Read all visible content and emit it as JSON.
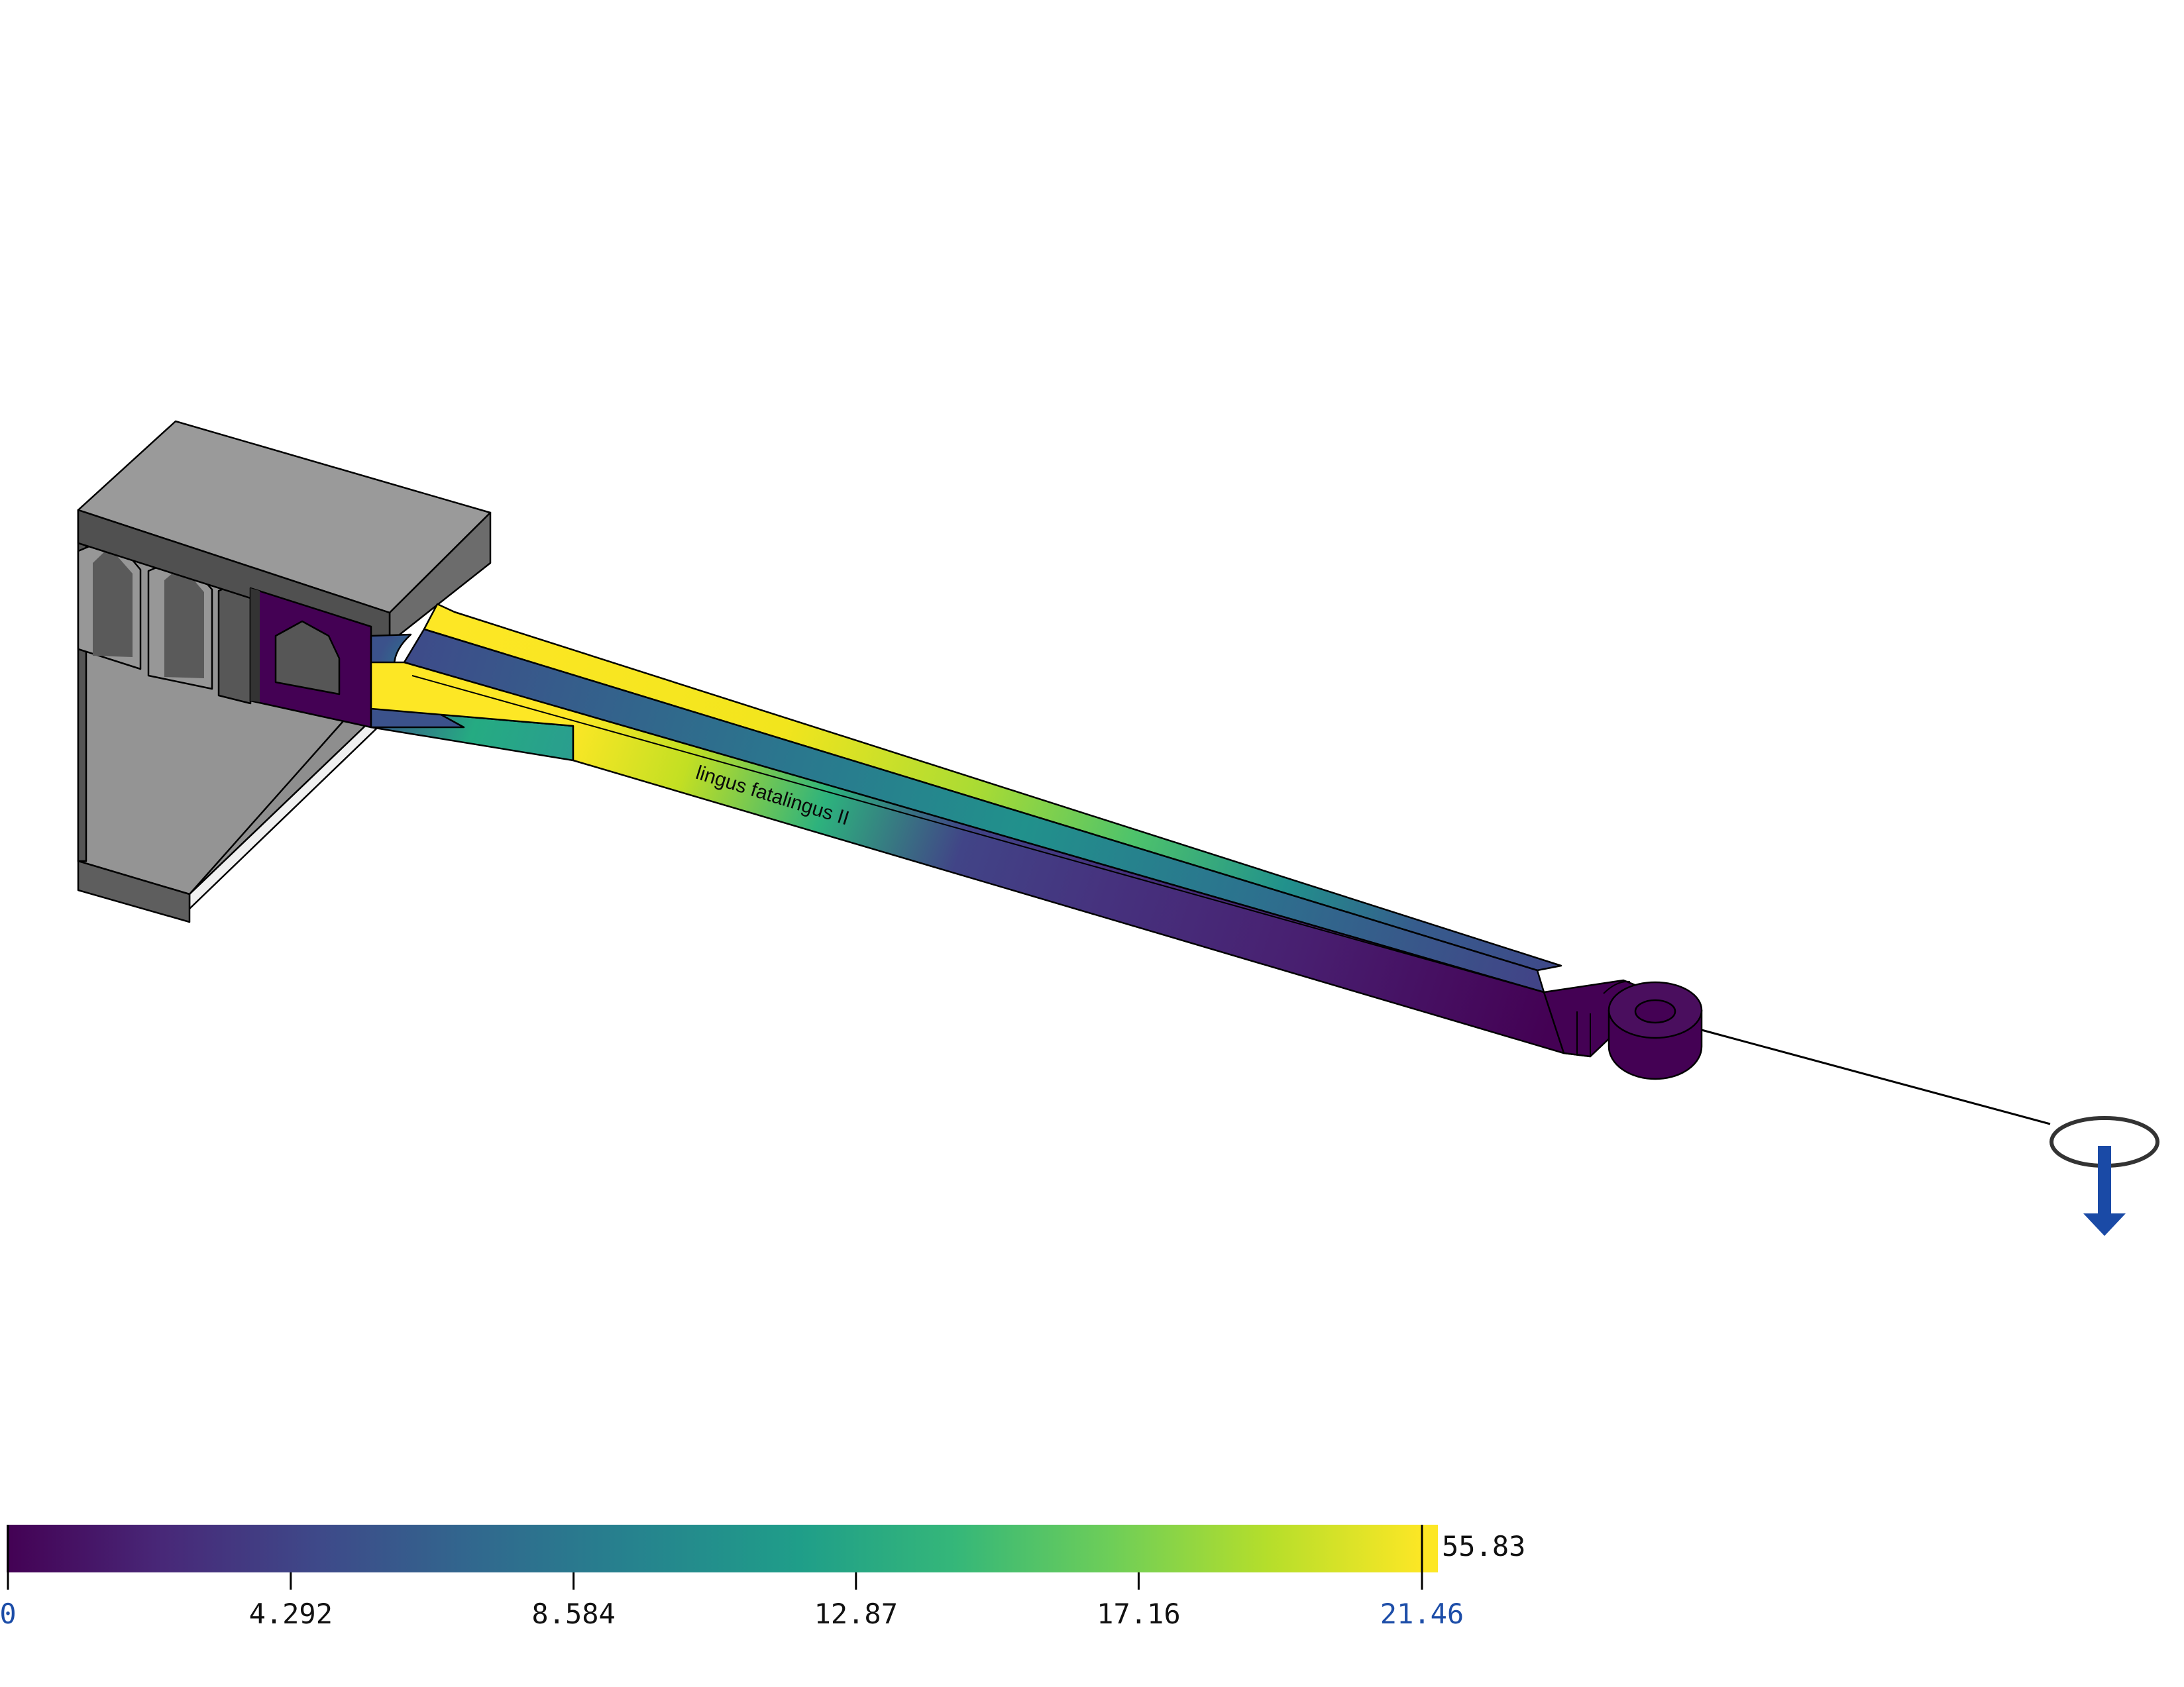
{
  "viewport": {
    "part_label": "lingus fatalingus II",
    "load_marker_icon": "downward-force-arrow-icon"
  },
  "colorbar": {
    "colormap": "viridis",
    "min": 0,
    "max": 21.46,
    "overflow_value": "55.83",
    "ticks": [
      {
        "label": "0",
        "value": 0,
        "limit": true
      },
      {
        "label": "4.292",
        "value": 4.292,
        "limit": false
      },
      {
        "label": "8.584",
        "value": 8.584,
        "limit": false
      },
      {
        "label": "12.87",
        "value": 12.87,
        "limit": false
      },
      {
        "label": "17.16",
        "value": 17.16,
        "limit": false
      },
      {
        "label": "21.46",
        "value": 21.46,
        "limit": true
      }
    ],
    "colors": [
      "#440154",
      "#482878",
      "#3e4989",
      "#31688e",
      "#26828e",
      "#1f9e89",
      "#35b779",
      "#6ece58",
      "#b5de2b",
      "#fde725"
    ],
    "limit_label_color": "#1c4da8"
  }
}
